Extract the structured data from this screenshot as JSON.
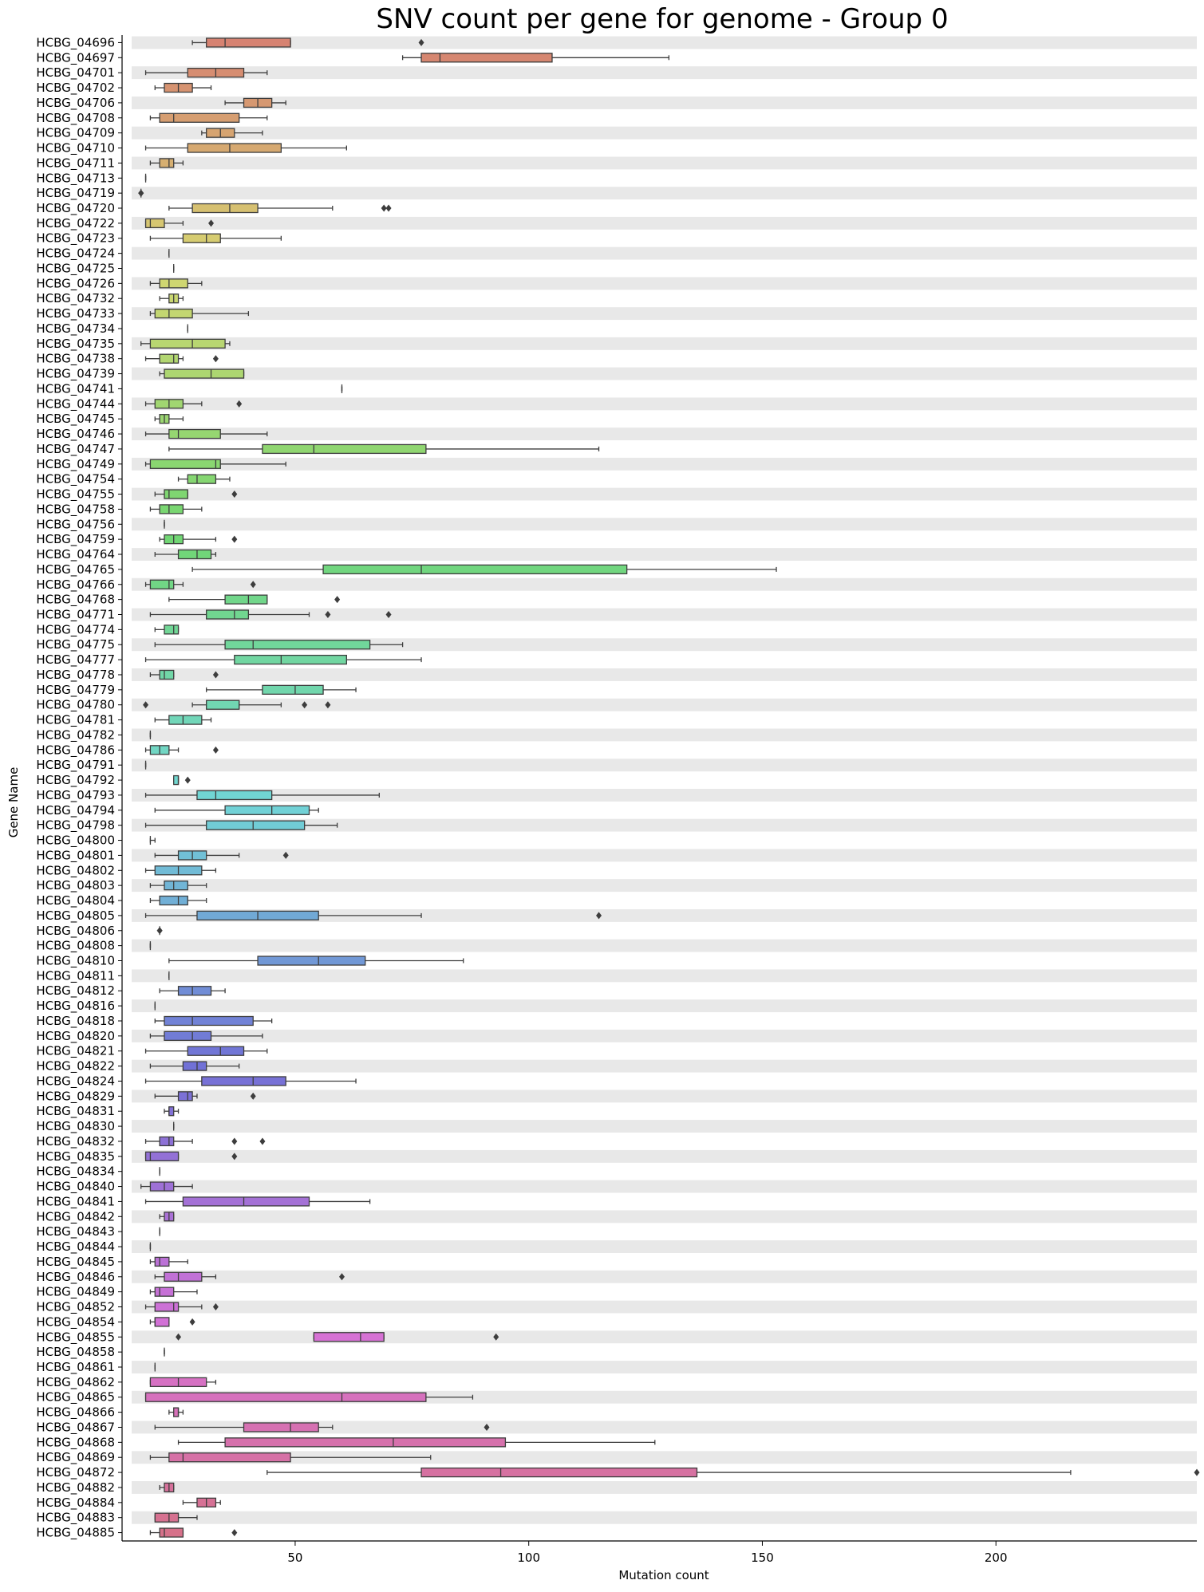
{
  "chart_data": {
    "type": "box",
    "orientation": "horizontal",
    "title": "SNV count per gene for genome - Group 0",
    "xlabel": "Mutation count",
    "ylabel": "Gene Name",
    "xlim": [
      15,
      243
    ],
    "xticks": [
      50,
      100,
      150,
      200
    ],
    "row_stripes": true,
    "grid": false,
    "series": [
      {
        "name": "HCBG_04696",
        "whislo": 28,
        "q1": 31,
        "med": 35,
        "q3": 49,
        "whishi": 49,
        "fliers": [
          77
        ]
      },
      {
        "name": "HCBG_04697",
        "whislo": 73,
        "q1": 77,
        "med": 81,
        "q3": 105,
        "whishi": 130,
        "fliers": []
      },
      {
        "name": "HCBG_04701",
        "whislo": 18,
        "q1": 27,
        "med": 33,
        "q3": 39,
        "whishi": 44,
        "fliers": []
      },
      {
        "name": "HCBG_04702",
        "whislo": 20,
        "q1": 22,
        "med": 25,
        "q3": 28,
        "whishi": 32,
        "fliers": []
      },
      {
        "name": "HCBG_04706",
        "whislo": 35,
        "q1": 39,
        "med": 42,
        "q3": 45,
        "whishi": 48,
        "fliers": []
      },
      {
        "name": "HCBG_04708",
        "whislo": 19,
        "q1": 21,
        "med": 24,
        "q3": 38,
        "whishi": 44,
        "fliers": []
      },
      {
        "name": "HCBG_04709",
        "whislo": 30,
        "q1": 31,
        "med": 34,
        "q3": 37,
        "whishi": 43,
        "fliers": []
      },
      {
        "name": "HCBG_04710",
        "whislo": 18,
        "q1": 27,
        "med": 36,
        "q3": 47,
        "whishi": 61,
        "fliers": []
      },
      {
        "name": "HCBG_04711",
        "whislo": 19,
        "q1": 21,
        "med": 23,
        "q3": 24,
        "whishi": 26,
        "fliers": []
      },
      {
        "name": "HCBG_04713",
        "whislo": 18,
        "q1": 18,
        "med": 18,
        "q3": 18,
        "whishi": 18,
        "fliers": []
      },
      {
        "name": "HCBG_04719",
        "whislo": 17,
        "q1": 17,
        "med": 17,
        "q3": 17,
        "whishi": 17,
        "fliers": [
          17,
          17
        ]
      },
      {
        "name": "HCBG_04720",
        "whislo": 23,
        "q1": 28,
        "med": 36,
        "q3": 42,
        "whishi": 58,
        "fliers": [
          69,
          70
        ]
      },
      {
        "name": "HCBG_04722",
        "whislo": 18,
        "q1": 18,
        "med": 19,
        "q3": 22,
        "whishi": 26,
        "fliers": [
          32
        ]
      },
      {
        "name": "HCBG_04723",
        "whislo": 19,
        "q1": 26,
        "med": 31,
        "q3": 34,
        "whishi": 47,
        "fliers": []
      },
      {
        "name": "HCBG_04724",
        "whislo": 23,
        "q1": 23,
        "med": 23,
        "q3": 23,
        "whishi": 23,
        "fliers": []
      },
      {
        "name": "HCBG_04725",
        "whislo": 24,
        "q1": 24,
        "med": 24,
        "q3": 24,
        "whishi": 24,
        "fliers": []
      },
      {
        "name": "HCBG_04726",
        "whislo": 19,
        "q1": 21,
        "med": 23,
        "q3": 27,
        "whishi": 30,
        "fliers": []
      },
      {
        "name": "HCBG_04732",
        "whislo": 21,
        "q1": 23,
        "med": 24,
        "q3": 25,
        "whishi": 26,
        "fliers": []
      },
      {
        "name": "HCBG_04733",
        "whislo": 19,
        "q1": 20,
        "med": 23,
        "q3": 28,
        "whishi": 40,
        "fliers": []
      },
      {
        "name": "HCBG_04734",
        "whislo": 27,
        "q1": 27,
        "med": 27,
        "q3": 27,
        "whishi": 27,
        "fliers": []
      },
      {
        "name": "HCBG_04735",
        "whislo": 17,
        "q1": 19,
        "med": 28,
        "q3": 35,
        "whishi": 36,
        "fliers": []
      },
      {
        "name": "HCBG_04738",
        "whislo": 18,
        "q1": 21,
        "med": 24,
        "q3": 25,
        "whishi": 26,
        "fliers": [
          33
        ]
      },
      {
        "name": "HCBG_04739",
        "whislo": 21,
        "q1": 22,
        "med": 32,
        "q3": 39,
        "whishi": 39,
        "fliers": []
      },
      {
        "name": "HCBG_04741",
        "whislo": 60,
        "q1": 60,
        "med": 60,
        "q3": 60,
        "whishi": 60,
        "fliers": []
      },
      {
        "name": "HCBG_04744",
        "whislo": 18,
        "q1": 20,
        "med": 23,
        "q3": 26,
        "whishi": 30,
        "fliers": [
          38
        ]
      },
      {
        "name": "HCBG_04745",
        "whislo": 20,
        "q1": 21,
        "med": 22,
        "q3": 23,
        "whishi": 26,
        "fliers": []
      },
      {
        "name": "HCBG_04746",
        "whislo": 18,
        "q1": 23,
        "med": 25,
        "q3": 34,
        "whishi": 44,
        "fliers": []
      },
      {
        "name": "HCBG_04747",
        "whislo": 23,
        "q1": 43,
        "med": 54,
        "q3": 78,
        "whishi": 115,
        "fliers": []
      },
      {
        "name": "HCBG_04749",
        "whislo": 18,
        "q1": 19,
        "med": 33,
        "q3": 34,
        "whishi": 48,
        "fliers": []
      },
      {
        "name": "HCBG_04754",
        "whislo": 25,
        "q1": 27,
        "med": 29,
        "q3": 33,
        "whishi": 36,
        "fliers": []
      },
      {
        "name": "HCBG_04755",
        "whislo": 20,
        "q1": 22,
        "med": 23,
        "q3": 27,
        "whishi": 27,
        "fliers": [
          37
        ]
      },
      {
        "name": "HCBG_04758",
        "whislo": 19,
        "q1": 21,
        "med": 23,
        "q3": 26,
        "whishi": 30,
        "fliers": []
      },
      {
        "name": "HCBG_04756",
        "whislo": 22,
        "q1": 22,
        "med": 22,
        "q3": 22,
        "whishi": 22,
        "fliers": []
      },
      {
        "name": "HCBG_04759",
        "whislo": 21,
        "q1": 22,
        "med": 24,
        "q3": 26,
        "whishi": 33,
        "fliers": [
          37
        ]
      },
      {
        "name": "HCBG_04764",
        "whislo": 20,
        "q1": 25,
        "med": 29,
        "q3": 32,
        "whishi": 33,
        "fliers": []
      },
      {
        "name": "HCBG_04765",
        "whislo": 28,
        "q1": 56,
        "med": 77,
        "q3": 121,
        "whishi": 153,
        "fliers": []
      },
      {
        "name": "HCBG_04766",
        "whislo": 18,
        "q1": 19,
        "med": 23,
        "q3": 24,
        "whishi": 26,
        "fliers": [
          41
        ]
      },
      {
        "name": "HCBG_04768",
        "whislo": 23,
        "q1": 35,
        "med": 40,
        "q3": 44,
        "whishi": 44,
        "fliers": [
          59
        ]
      },
      {
        "name": "HCBG_04771",
        "whislo": 19,
        "q1": 31,
        "med": 37,
        "q3": 40,
        "whishi": 53,
        "fliers": [
          57,
          70
        ]
      },
      {
        "name": "HCBG_04774",
        "whislo": 20,
        "q1": 22,
        "med": 24,
        "q3": 25,
        "whishi": 25,
        "fliers": []
      },
      {
        "name": "HCBG_04775",
        "whislo": 20,
        "q1": 35,
        "med": 41,
        "q3": 66,
        "whishi": 73,
        "fliers": []
      },
      {
        "name": "HCBG_04777",
        "whislo": 18,
        "q1": 37,
        "med": 47,
        "q3": 61,
        "whishi": 77,
        "fliers": []
      },
      {
        "name": "HCBG_04778",
        "whislo": 19,
        "q1": 21,
        "med": 22,
        "q3": 24,
        "whishi": 24,
        "fliers": [
          33
        ]
      },
      {
        "name": "HCBG_04779",
        "whislo": 31,
        "q1": 43,
        "med": 50,
        "q3": 56,
        "whishi": 63,
        "fliers": []
      },
      {
        "name": "HCBG_04780",
        "whislo": 28,
        "q1": 31,
        "med": 38,
        "q3": 38,
        "whishi": 47,
        "fliers": [
          18,
          52,
          57
        ]
      },
      {
        "name": "HCBG_04781",
        "whislo": 20,
        "q1": 23,
        "med": 26,
        "q3": 30,
        "whishi": 32,
        "fliers": []
      },
      {
        "name": "HCBG_04782",
        "whislo": 19,
        "q1": 19,
        "med": 19,
        "q3": 19,
        "whishi": 19,
        "fliers": []
      },
      {
        "name": "HCBG_04786",
        "whislo": 18,
        "q1": 19,
        "med": 21,
        "q3": 23,
        "whishi": 25,
        "fliers": [
          33
        ]
      },
      {
        "name": "HCBG_04791",
        "whislo": 18,
        "q1": 18,
        "med": 18,
        "q3": 18,
        "whishi": 18,
        "fliers": []
      },
      {
        "name": "HCBG_04792",
        "whislo": 24,
        "q1": 24,
        "med": 25,
        "q3": 25,
        "whishi": 25,
        "fliers": [
          27
        ]
      },
      {
        "name": "HCBG_04793",
        "whislo": 18,
        "q1": 29,
        "med": 33,
        "q3": 45,
        "whishi": 68,
        "fliers": []
      },
      {
        "name": "HCBG_04794",
        "whislo": 20,
        "q1": 35,
        "med": 45,
        "q3": 53,
        "whishi": 55,
        "fliers": []
      },
      {
        "name": "HCBG_04798",
        "whislo": 18,
        "q1": 31,
        "med": 41,
        "q3": 52,
        "whishi": 59,
        "fliers": []
      },
      {
        "name": "HCBG_04800",
        "whislo": 19,
        "q1": 19,
        "med": 19,
        "q3": 19,
        "whishi": 20,
        "fliers": []
      },
      {
        "name": "HCBG_04801",
        "whislo": 20,
        "q1": 25,
        "med": 28,
        "q3": 31,
        "whishi": 38,
        "fliers": [
          48
        ]
      },
      {
        "name": "HCBG_04802",
        "whislo": 18,
        "q1": 20,
        "med": 25,
        "q3": 30,
        "whishi": 33,
        "fliers": []
      },
      {
        "name": "HCBG_04803",
        "whislo": 19,
        "q1": 22,
        "med": 24,
        "q3": 27,
        "whishi": 31,
        "fliers": []
      },
      {
        "name": "HCBG_04804",
        "whislo": 19,
        "q1": 21,
        "med": 25,
        "q3": 27,
        "whishi": 31,
        "fliers": []
      },
      {
        "name": "HCBG_04805",
        "whislo": 18,
        "q1": 29,
        "med": 42,
        "q3": 55,
        "whishi": 77,
        "fliers": [
          115
        ]
      },
      {
        "name": "HCBG_04806",
        "whislo": 21,
        "q1": 21,
        "med": 21,
        "q3": 21,
        "whishi": 21,
        "fliers": [
          21,
          21
        ]
      },
      {
        "name": "HCBG_04808",
        "whislo": 19,
        "q1": 19,
        "med": 19,
        "q3": 19,
        "whishi": 19,
        "fliers": []
      },
      {
        "name": "HCBG_04810",
        "whislo": 23,
        "q1": 42,
        "med": 55,
        "q3": 65,
        "whishi": 86,
        "fliers": []
      },
      {
        "name": "HCBG_04811",
        "whislo": 23,
        "q1": 23,
        "med": 23,
        "q3": 23,
        "whishi": 23,
        "fliers": []
      },
      {
        "name": "HCBG_04812",
        "whislo": 21,
        "q1": 25,
        "med": 28,
        "q3": 32,
        "whishi": 35,
        "fliers": []
      },
      {
        "name": "HCBG_04816",
        "whislo": 20,
        "q1": 20,
        "med": 20,
        "q3": 20,
        "whishi": 20,
        "fliers": []
      },
      {
        "name": "HCBG_04818",
        "whislo": 20,
        "q1": 22,
        "med": 28,
        "q3": 41,
        "whishi": 45,
        "fliers": []
      },
      {
        "name": "HCBG_04820",
        "whislo": 19,
        "q1": 22,
        "med": 28,
        "q3": 32,
        "whishi": 43,
        "fliers": []
      },
      {
        "name": "HCBG_04821",
        "whislo": 18,
        "q1": 27,
        "med": 34,
        "q3": 39,
        "whishi": 44,
        "fliers": []
      },
      {
        "name": "HCBG_04822",
        "whislo": 19,
        "q1": 26,
        "med": 29,
        "q3": 31,
        "whishi": 38,
        "fliers": []
      },
      {
        "name": "HCBG_04824",
        "whislo": 18,
        "q1": 30,
        "med": 41,
        "q3": 48,
        "whishi": 63,
        "fliers": []
      },
      {
        "name": "HCBG_04829",
        "whislo": 20,
        "q1": 25,
        "med": 27,
        "q3": 28,
        "whishi": 29,
        "fliers": [
          41
        ]
      },
      {
        "name": "HCBG_04831",
        "whislo": 22,
        "q1": 23,
        "med": 23,
        "q3": 24,
        "whishi": 25,
        "fliers": []
      },
      {
        "name": "HCBG_04830",
        "whislo": 24,
        "q1": 24,
        "med": 24,
        "q3": 24,
        "whishi": 24,
        "fliers": []
      },
      {
        "name": "HCBG_04832",
        "whislo": 18,
        "q1": 21,
        "med": 23,
        "q3": 24,
        "whishi": 28,
        "fliers": [
          37,
          43
        ]
      },
      {
        "name": "HCBG_04835",
        "whislo": 18,
        "q1": 18,
        "med": 19,
        "q3": 25,
        "whishi": 25,
        "fliers": [
          37
        ]
      },
      {
        "name": "HCBG_04834",
        "whislo": 21,
        "q1": 21,
        "med": 21,
        "q3": 21,
        "whishi": 21,
        "fliers": []
      },
      {
        "name": "HCBG_04840",
        "whislo": 17,
        "q1": 19,
        "med": 22,
        "q3": 24,
        "whishi": 28,
        "fliers": []
      },
      {
        "name": "HCBG_04841",
        "whislo": 18,
        "q1": 26,
        "med": 39,
        "q3": 53,
        "whishi": 66,
        "fliers": []
      },
      {
        "name": "HCBG_04842",
        "whislo": 21,
        "q1": 22,
        "med": 23,
        "q3": 24,
        "whishi": 24,
        "fliers": []
      },
      {
        "name": "HCBG_04843",
        "whislo": 21,
        "q1": 21,
        "med": 21,
        "q3": 21,
        "whishi": 21,
        "fliers": []
      },
      {
        "name": "HCBG_04844",
        "whislo": 19,
        "q1": 19,
        "med": 19,
        "q3": 19,
        "whishi": 19,
        "fliers": []
      },
      {
        "name": "HCBG_04845",
        "whislo": 19,
        "q1": 20,
        "med": 21,
        "q3": 23,
        "whishi": 27,
        "fliers": []
      },
      {
        "name": "HCBG_04846",
        "whislo": 20,
        "q1": 22,
        "med": 25,
        "q3": 30,
        "whishi": 33,
        "fliers": [
          60
        ]
      },
      {
        "name": "HCBG_04849",
        "whislo": 19,
        "q1": 20,
        "med": 21,
        "q3": 24,
        "whishi": 29,
        "fliers": []
      },
      {
        "name": "HCBG_04852",
        "whislo": 18,
        "q1": 20,
        "med": 24,
        "q3": 25,
        "whishi": 30,
        "fliers": [
          33
        ]
      },
      {
        "name": "HCBG_04854",
        "whislo": 19,
        "q1": 20,
        "med": 20,
        "q3": 23,
        "whishi": 23,
        "fliers": [
          28
        ]
      },
      {
        "name": "HCBG_04855",
        "whislo": 54,
        "q1": 54,
        "med": 64,
        "q3": 69,
        "whishi": 69,
        "fliers": [
          25,
          93
        ]
      },
      {
        "name": "HCBG_04858",
        "whislo": 22,
        "q1": 22,
        "med": 22,
        "q3": 22,
        "whishi": 22,
        "fliers": []
      },
      {
        "name": "HCBG_04861",
        "whislo": 20,
        "q1": 20,
        "med": 20,
        "q3": 20,
        "whishi": 20,
        "fliers": []
      },
      {
        "name": "HCBG_04862",
        "whislo": 19,
        "q1": 19,
        "med": 25,
        "q3": 31,
        "whishi": 33,
        "fliers": []
      },
      {
        "name": "HCBG_04865",
        "whislo": 18,
        "q1": 18,
        "med": 60,
        "q3": 78,
        "whishi": 88,
        "fliers": []
      },
      {
        "name": "HCBG_04866",
        "whislo": 23,
        "q1": 24,
        "med": 25,
        "q3": 25,
        "whishi": 26,
        "fliers": []
      },
      {
        "name": "HCBG_04867",
        "whislo": 20,
        "q1": 39,
        "med": 49,
        "q3": 55,
        "whishi": 58,
        "fliers": [
          91
        ]
      },
      {
        "name": "HCBG_04868",
        "whislo": 25,
        "q1": 35,
        "med": 71,
        "q3": 95,
        "whishi": 127,
        "fliers": []
      },
      {
        "name": "HCBG_04869",
        "whislo": 19,
        "q1": 23,
        "med": 26,
        "q3": 49,
        "whishi": 79,
        "fliers": []
      },
      {
        "name": "HCBG_04872",
        "whislo": 44,
        "q1": 77,
        "med": 94,
        "q3": 136,
        "whishi": 216,
        "fliers": [
          243
        ]
      },
      {
        "name": "HCBG_04882",
        "whislo": 21,
        "q1": 22,
        "med": 23,
        "q3": 24,
        "whishi": 24,
        "fliers": []
      },
      {
        "name": "HCBG_04884",
        "whislo": 26,
        "q1": 29,
        "med": 31,
        "q3": 33,
        "whishi": 34,
        "fliers": []
      },
      {
        "name": "HCBG_04883",
        "whislo": 20,
        "q1": 20,
        "med": 23,
        "q3": 25,
        "whishi": 29,
        "fliers": []
      },
      {
        "name": "HCBG_04885",
        "whislo": 19,
        "q1": 21,
        "med": 22,
        "q3": 26,
        "whishi": 26,
        "fliers": [
          37
        ]
      }
    ]
  }
}
